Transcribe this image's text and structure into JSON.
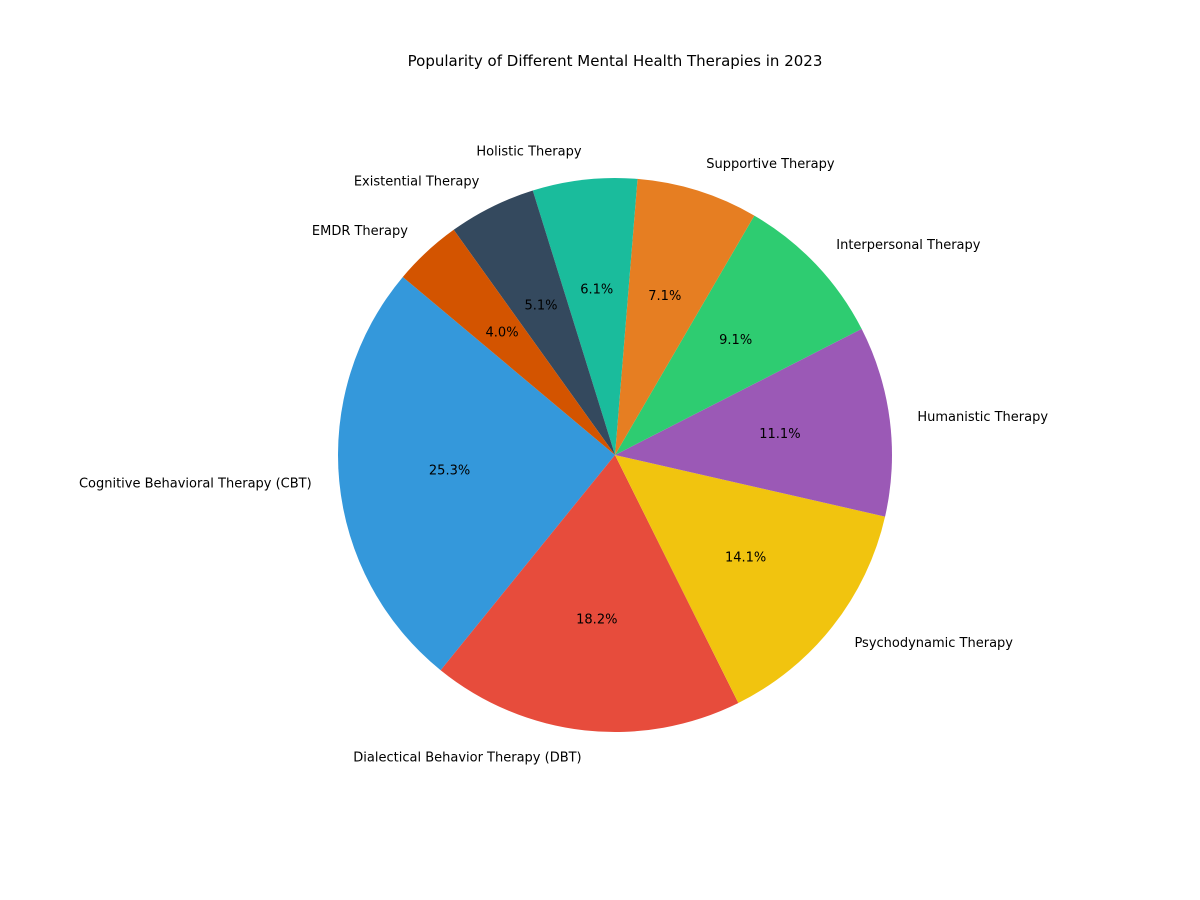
{
  "chart_data": {
    "type": "pie",
    "title": "Popularity of Different Mental Health Therapies in 2023",
    "start_angle_deg": 140,
    "direction": "counterclockwise",
    "slices": [
      {
        "label": "Cognitive Behavioral Therapy (CBT)",
        "value": 25.3,
        "pct_label": "25.3%",
        "color": "#3498db"
      },
      {
        "label": "Dialectical Behavior Therapy (DBT)",
        "value": 18.2,
        "pct_label": "18.2%",
        "color": "#e74c3c"
      },
      {
        "label": "Psychodynamic Therapy",
        "value": 14.1,
        "pct_label": "14.1%",
        "color": "#f1c40f"
      },
      {
        "label": "Humanistic Therapy",
        "value": 11.1,
        "pct_label": "11.1%",
        "color": "#9b59b6"
      },
      {
        "label": "Interpersonal Therapy",
        "value": 9.1,
        "pct_label": "9.1%",
        "color": "#2ecc71"
      },
      {
        "label": "Supportive Therapy",
        "value": 7.1,
        "pct_label": "7.1%",
        "color": "#e67e22"
      },
      {
        "label": "Holistic Therapy",
        "value": 6.1,
        "pct_label": "6.1%",
        "color": "#1abc9c"
      },
      {
        "label": "Existential Therapy",
        "value": 5.1,
        "pct_label": "5.1%",
        "color": "#34495e"
      },
      {
        "label": "EMDR Therapy",
        "value": 4.0,
        "pct_label": "4.0%",
        "color": "#d35400"
      }
    ]
  }
}
